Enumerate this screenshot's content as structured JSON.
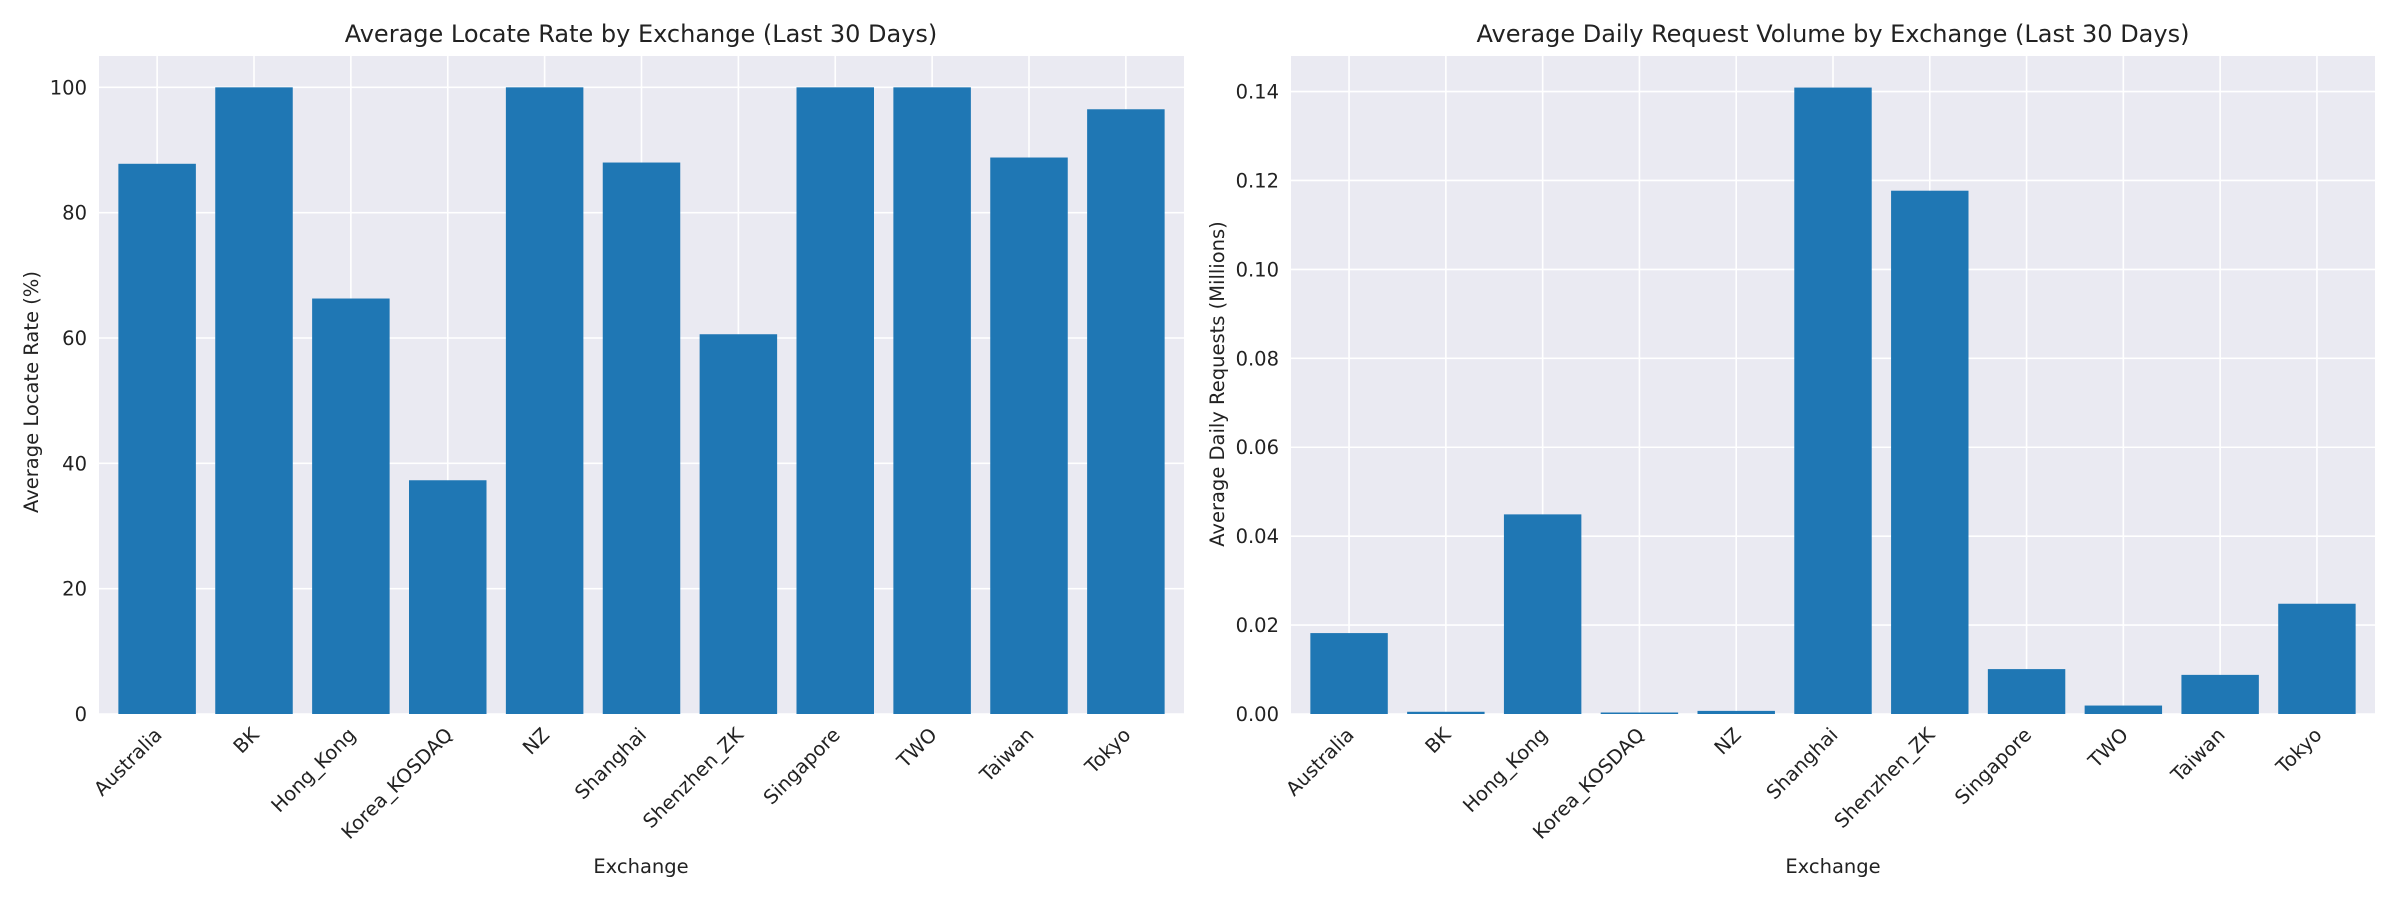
{
  "colors": {
    "plot_background": "#eaeaf2",
    "bar": "#1f77b4",
    "grid": "#ffffff"
  },
  "chart_data": [
    {
      "type": "bar",
      "title": "Average Locate Rate by Exchange (Last 30 Days)",
      "xlabel": "Exchange",
      "ylabel": "Average Locate Rate (%)",
      "categories": [
        "Australia",
        "BK",
        "Hong_Kong",
        "Korea_KOSDAQ",
        "NZ",
        "Shanghai",
        "Shenzhen_ZK",
        "Singapore",
        "TWO",
        "Taiwan",
        "Tokyo"
      ],
      "values": [
        87.8,
        100,
        66.3,
        37.3,
        100,
        88.0,
        60.6,
        100,
        100,
        88.8,
        96.5
      ],
      "ylim": [
        0,
        105
      ],
      "yticks": [
        0,
        20,
        40,
        60,
        80,
        100
      ],
      "ytick_labels": [
        "0",
        "20",
        "40",
        "60",
        "80",
        "100"
      ],
      "grid": true
    },
    {
      "type": "bar",
      "title": "Average Daily Request Volume by Exchange (Last 30 Days)",
      "xlabel": "Exchange",
      "ylabel": "Average Daily Requests (Millions)",
      "categories": [
        "Australia",
        "BK",
        "Hong_Kong",
        "Korea_KOSDAQ",
        "NZ",
        "Shanghai",
        "Shenzhen_ZK",
        "Singapore",
        "TWO",
        "Taiwan",
        "Tokyo"
      ],
      "values": [
        0.0182,
        0.0005,
        0.0449,
        0.0002,
        0.0007,
        0.1409,
        0.1177,
        0.0101,
        0.0019,
        0.0088,
        0.0248
      ],
      "ylim": [
        0,
        0.148
      ],
      "yticks": [
        0,
        0.02,
        0.04,
        0.06,
        0.08,
        0.1,
        0.12,
        0.14
      ],
      "ytick_labels": [
        "0.00",
        "0.02",
        "0.04",
        "0.06",
        "0.08",
        "0.10",
        "0.12",
        "0.14"
      ],
      "grid": true
    }
  ]
}
